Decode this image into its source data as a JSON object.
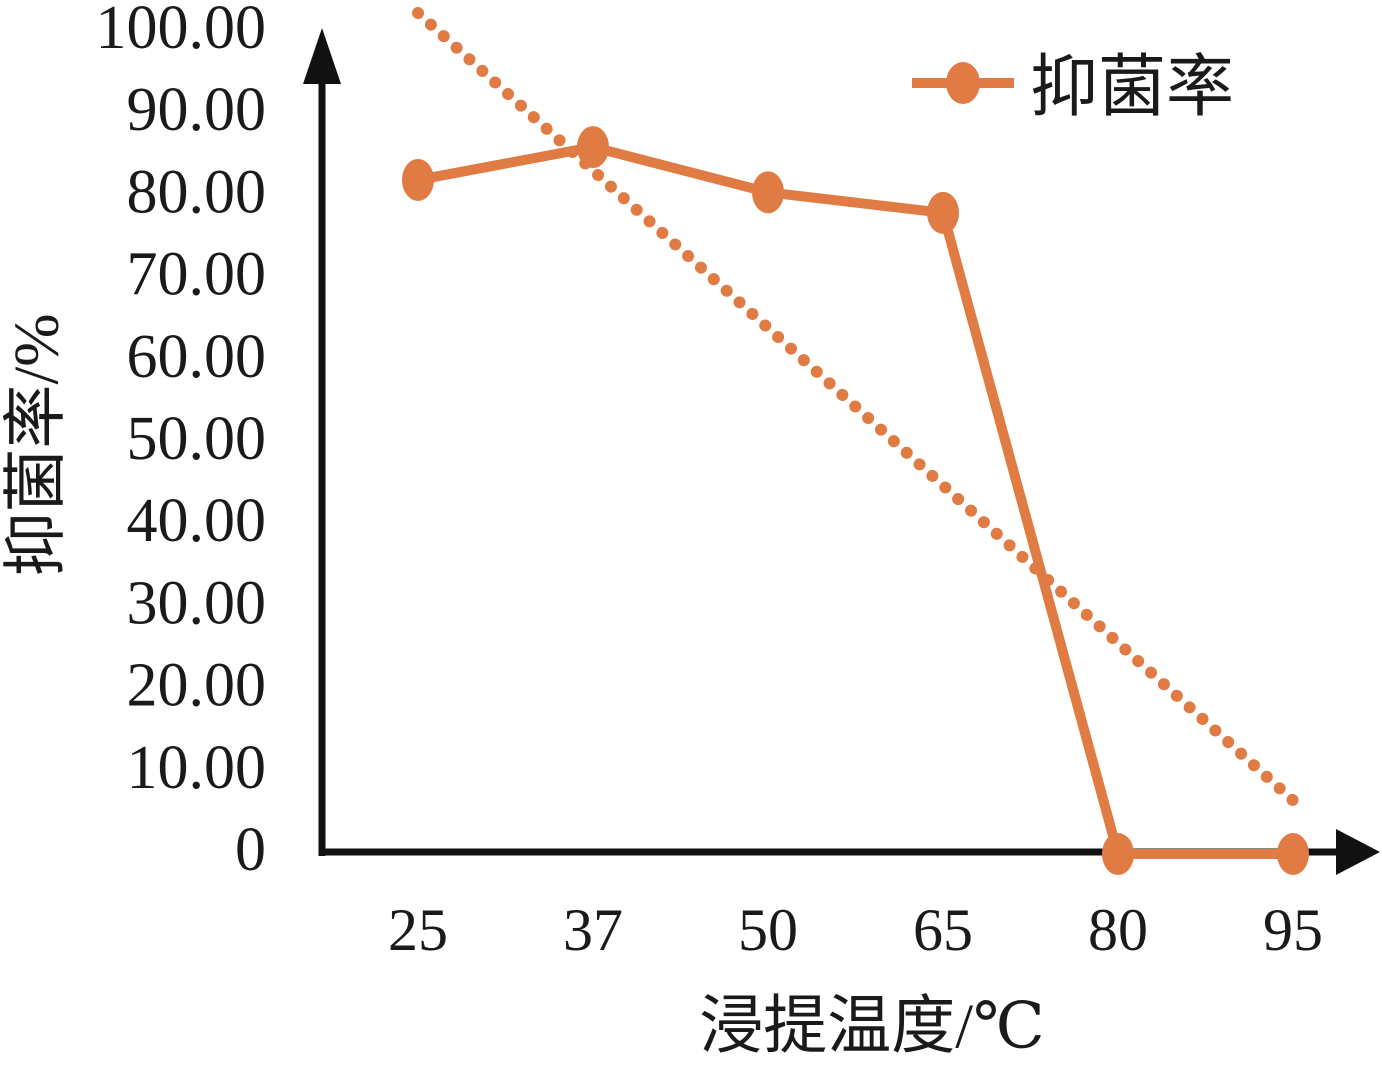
{
  "chart_data": {
    "type": "line",
    "title": "",
    "xlabel": "浸提温度/℃",
    "ylabel": "抑菌率/%",
    "categories": [
      "25",
      "37",
      "50",
      "65",
      "80",
      "95"
    ],
    "series": [
      {
        "name": "抑菌率",
        "values": [
          82,
          86,
          80.5,
          78,
          0,
          0
        ],
        "marker": "ellipse",
        "line_style": "solid"
      }
    ],
    "trendline": {
      "for_series": "抑菌率",
      "kind": "linear",
      "line_style": "dotted",
      "start_value": 102.3,
      "end_value": 6.5
    },
    "ylim": [
      0,
      100
    ],
    "yticks": [
      {
        "label": "100.00",
        "value": 100
      },
      {
        "label": "90.00",
        "value": 90
      },
      {
        "label": "80.00",
        "value": 80
      },
      {
        "label": "70.00",
        "value": 70
      },
      {
        "label": "60.00",
        "value": 60
      },
      {
        "label": "50.00",
        "value": 50
      },
      {
        "label": "40.00",
        "value": 40
      },
      {
        "label": "30.00",
        "value": 30
      },
      {
        "label": "20.00",
        "value": 20
      },
      {
        "label": "10.00",
        "value": 10
      },
      {
        "label": "0",
        "value": 0
      }
    ],
    "grid": false,
    "legend": {
      "position": "top-right",
      "entries": [
        "抑菌率"
      ]
    }
  },
  "colors": {
    "series": "#E07B44",
    "axis": "#111111",
    "text": "#1A1A1A",
    "background": "#FFFFFF"
  }
}
